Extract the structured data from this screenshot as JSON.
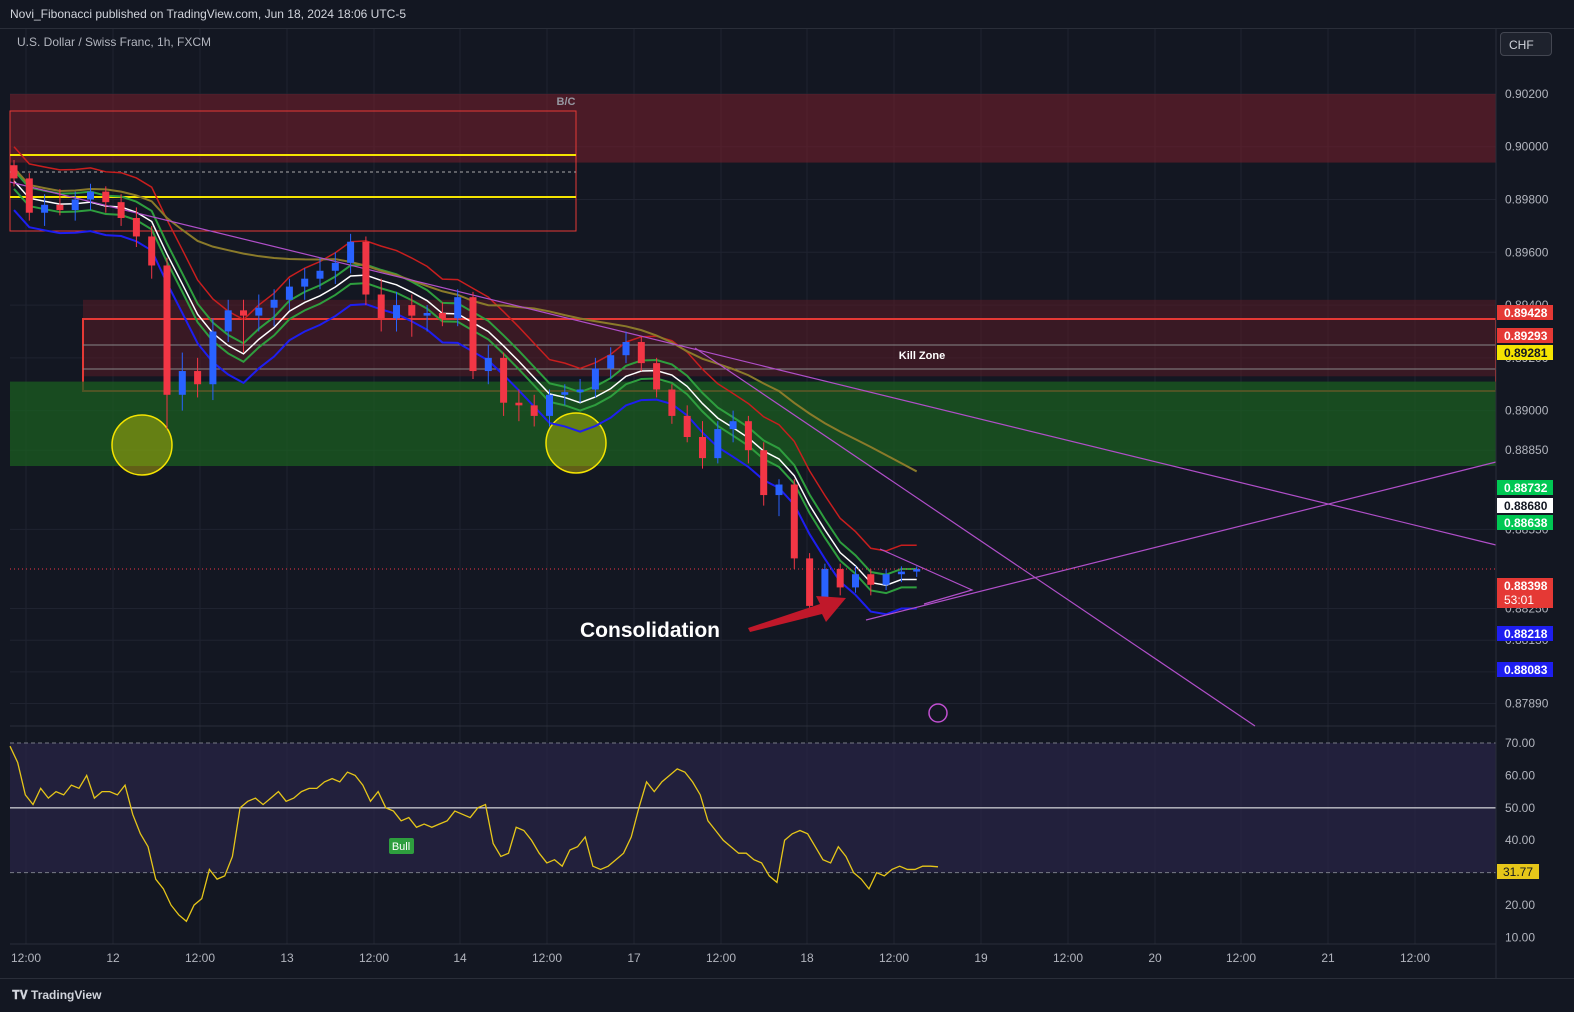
{
  "header": {
    "published": "Novi_Fibonacci published on TradingView.com, Jun 18, 2024 18:06 UTC-5"
  },
  "symbol": {
    "title": "U.S. Dollar / Swiss Franc, 1h, FXCM",
    "currency": "CHF"
  },
  "footer": {
    "brand": "TradingView"
  },
  "chart_data": [
    {
      "type": "candlestick",
      "title": "U.S. Dollar / Swiss Franc, 1h, FXCM",
      "y_axis_side": "right",
      "ylim": [
        0.8782,
        0.9045
      ],
      "y_ticks": [
        "0.90200",
        "0.90000",
        "0.89800",
        "0.89600",
        "0.89400",
        "0.89200",
        "0.89000",
        "0.88850",
        "0.88550",
        "0.88250",
        "0.88130",
        "0.88010",
        "0.87890"
      ],
      "x_tick_labels": [
        "12:00",
        "12",
        "12:00",
        "13",
        "12:00",
        "14",
        "12:00",
        "17",
        "12:00",
        "18",
        "12:00",
        "19",
        "12:00",
        "20",
        "12:00",
        "21",
        "12:00"
      ],
      "candles": [
        {
          "t": 0,
          "o": 0.8993,
          "h": 0.8995,
          "l": 0.8985,
          "c": 0.8988
        },
        {
          "t": 1,
          "o": 0.8988,
          "h": 0.899,
          "l": 0.8972,
          "c": 0.8975
        },
        {
          "t": 2,
          "o": 0.8975,
          "h": 0.8982,
          "l": 0.897,
          "c": 0.8978
        },
        {
          "t": 3,
          "o": 0.8978,
          "h": 0.8984,
          "l": 0.8974,
          "c": 0.8976
        },
        {
          "t": 4,
          "o": 0.8976,
          "h": 0.8983,
          "l": 0.8972,
          "c": 0.898
        },
        {
          "t": 5,
          "o": 0.898,
          "h": 0.8986,
          "l": 0.8976,
          "c": 0.8983
        },
        {
          "t": 6,
          "o": 0.8983,
          "h": 0.8985,
          "l": 0.8975,
          "c": 0.8979
        },
        {
          "t": 7,
          "o": 0.8979,
          "h": 0.8982,
          "l": 0.897,
          "c": 0.8973
        },
        {
          "t": 8,
          "o": 0.8973,
          "h": 0.8977,
          "l": 0.8962,
          "c": 0.8966
        },
        {
          "t": 9,
          "o": 0.8966,
          "h": 0.897,
          "l": 0.895,
          "c": 0.8955
        },
        {
          "t": 10,
          "o": 0.8955,
          "h": 0.8958,
          "l": 0.8893,
          "c": 0.8906
        },
        {
          "t": 11,
          "o": 0.8906,
          "h": 0.8922,
          "l": 0.89,
          "c": 0.8915
        },
        {
          "t": 12,
          "o": 0.8915,
          "h": 0.892,
          "l": 0.8905,
          "c": 0.891
        },
        {
          "t": 13,
          "o": 0.891,
          "h": 0.8935,
          "l": 0.8904,
          "c": 0.893
        },
        {
          "t": 14,
          "o": 0.893,
          "h": 0.8942,
          "l": 0.8926,
          "c": 0.8938
        },
        {
          "t": 15,
          "o": 0.8938,
          "h": 0.8942,
          "l": 0.8922,
          "c": 0.8936
        },
        {
          "t": 16,
          "o": 0.8936,
          "h": 0.8944,
          "l": 0.893,
          "c": 0.8939
        },
        {
          "t": 17,
          "o": 0.8939,
          "h": 0.8946,
          "l": 0.8932,
          "c": 0.8942
        },
        {
          "t": 18,
          "o": 0.8942,
          "h": 0.895,
          "l": 0.8938,
          "c": 0.8947
        },
        {
          "t": 19,
          "o": 0.8947,
          "h": 0.8954,
          "l": 0.8942,
          "c": 0.895
        },
        {
          "t": 20,
          "o": 0.895,
          "h": 0.8958,
          "l": 0.8946,
          "c": 0.8953
        },
        {
          "t": 21,
          "o": 0.8953,
          "h": 0.896,
          "l": 0.8948,
          "c": 0.8956
        },
        {
          "t": 22,
          "o": 0.8956,
          "h": 0.8967,
          "l": 0.8952,
          "c": 0.8964
        },
        {
          "t": 23,
          "o": 0.8964,
          "h": 0.8966,
          "l": 0.894,
          "c": 0.8944
        },
        {
          "t": 24,
          "o": 0.8944,
          "h": 0.895,
          "l": 0.893,
          "c": 0.8935
        },
        {
          "t": 25,
          "o": 0.8935,
          "h": 0.8945,
          "l": 0.893,
          "c": 0.894
        },
        {
          "t": 26,
          "o": 0.894,
          "h": 0.8944,
          "l": 0.8928,
          "c": 0.8936
        },
        {
          "t": 27,
          "o": 0.8936,
          "h": 0.894,
          "l": 0.893,
          "c": 0.8937
        },
        {
          "t": 28,
          "o": 0.8937,
          "h": 0.8941,
          "l": 0.8932,
          "c": 0.8935
        },
        {
          "t": 29,
          "o": 0.8935,
          "h": 0.8946,
          "l": 0.8932,
          "c": 0.8943
        },
        {
          "t": 30,
          "o": 0.8943,
          "h": 0.8945,
          "l": 0.8912,
          "c": 0.8915
        },
        {
          "t": 31,
          "o": 0.8915,
          "h": 0.8925,
          "l": 0.891,
          "c": 0.892
        },
        {
          "t": 32,
          "o": 0.892,
          "h": 0.8922,
          "l": 0.8898,
          "c": 0.8903
        },
        {
          "t": 33,
          "o": 0.8903,
          "h": 0.8908,
          "l": 0.8896,
          "c": 0.8902
        },
        {
          "t": 34,
          "o": 0.8902,
          "h": 0.8906,
          "l": 0.8894,
          "c": 0.8898
        },
        {
          "t": 35,
          "o": 0.8898,
          "h": 0.8908,
          "l": 0.8894,
          "c": 0.8906
        },
        {
          "t": 36,
          "o": 0.8906,
          "h": 0.891,
          "l": 0.8902,
          "c": 0.8907
        },
        {
          "t": 37,
          "o": 0.8907,
          "h": 0.8912,
          "l": 0.8903,
          "c": 0.8908
        },
        {
          "t": 38,
          "o": 0.8908,
          "h": 0.892,
          "l": 0.8905,
          "c": 0.8916
        },
        {
          "t": 39,
          "o": 0.8916,
          "h": 0.8924,
          "l": 0.8912,
          "c": 0.8921
        },
        {
          "t": 40,
          "o": 0.8921,
          "h": 0.893,
          "l": 0.8918,
          "c": 0.8926
        },
        {
          "t": 41,
          "o": 0.8926,
          "h": 0.8928,
          "l": 0.8915,
          "c": 0.8918
        },
        {
          "t": 42,
          "o": 0.8918,
          "h": 0.892,
          "l": 0.8905,
          "c": 0.8908
        },
        {
          "t": 43,
          "o": 0.8908,
          "h": 0.891,
          "l": 0.8895,
          "c": 0.8898
        },
        {
          "t": 44,
          "o": 0.8898,
          "h": 0.8902,
          "l": 0.8888,
          "c": 0.889
        },
        {
          "t": 45,
          "o": 0.889,
          "h": 0.8896,
          "l": 0.8878,
          "c": 0.8882
        },
        {
          "t": 46,
          "o": 0.8882,
          "h": 0.8896,
          "l": 0.888,
          "c": 0.8893
        },
        {
          "t": 47,
          "o": 0.8893,
          "h": 0.89,
          "l": 0.8888,
          "c": 0.8896
        },
        {
          "t": 48,
          "o": 0.8896,
          "h": 0.8898,
          "l": 0.888,
          "c": 0.8885
        },
        {
          "t": 49,
          "o": 0.8885,
          "h": 0.8888,
          "l": 0.8864,
          "c": 0.8868
        },
        {
          "t": 50,
          "o": 0.8868,
          "h": 0.8874,
          "l": 0.886,
          "c": 0.8872
        },
        {
          "t": 51,
          "o": 0.8872,
          "h": 0.8874,
          "l": 0.884,
          "c": 0.8844
        },
        {
          "t": 52,
          "o": 0.8844,
          "h": 0.8846,
          "l": 0.8822,
          "c": 0.8826
        },
        {
          "t": 53,
          "o": 0.8826,
          "h": 0.8842,
          "l": 0.8824,
          "c": 0.884
        },
        {
          "t": 54,
          "o": 0.884,
          "h": 0.8842,
          "l": 0.883,
          "c": 0.8833
        },
        {
          "t": 55,
          "o": 0.8833,
          "h": 0.8841,
          "l": 0.8831,
          "c": 0.8838
        },
        {
          "t": 56,
          "o": 0.8838,
          "h": 0.884,
          "l": 0.883,
          "c": 0.8834
        },
        {
          "t": 57,
          "o": 0.8834,
          "h": 0.884,
          "l": 0.8832,
          "c": 0.8838
        },
        {
          "t": 58,
          "o": 0.8838,
          "h": 0.8841,
          "l": 0.8835,
          "c": 0.8839
        },
        {
          "t": 59,
          "o": 0.8839,
          "h": 0.8841,
          "l": 0.8837,
          "c": 0.884
        }
      ],
      "price_labels": [
        {
          "value": "0.89428",
          "color": "#e53935"
        },
        {
          "value": "0.89293",
          "color": "#e53935"
        },
        {
          "value": "0.89281",
          "color": "#f5e400"
        },
        {
          "value": "0.88732",
          "color": "#00c853"
        },
        {
          "value": "0.88680",
          "color": "#ffffff"
        },
        {
          "value": "0.88638",
          "color": "#00c853"
        },
        {
          "value": "0.88398",
          "color": "#e53935"
        },
        {
          "value": "0.88218",
          "color": "#1e1ef0"
        },
        {
          "value": "0.88083",
          "color": "#1e1ef0"
        }
      ],
      "countdown": "53:01",
      "annotations": [
        "B/C",
        "Kill Zone",
        "Consolidation"
      ],
      "zones": [
        {
          "name": "supply",
          "from": 0.8994,
          "to": 0.902,
          "color": "#7a1f2b"
        },
        {
          "name": "kill-zone",
          "from": 0.8913,
          "to": 0.8942,
          "color": "#5a1c26"
        },
        {
          "name": "demand",
          "from": 0.8879,
          "to": 0.8911,
          "color": "#1b5e20"
        }
      ]
    },
    {
      "type": "line",
      "title": "RSI",
      "ylim": [
        8,
        74
      ],
      "y_ticks": [
        "70.00",
        "60.00",
        "50.00",
        "40.00",
        "30.00",
        "20.00",
        "10.00"
      ],
      "levels": [
        70,
        50,
        30
      ],
      "current_value": "31.77",
      "badge": "Bull",
      "values": [
        69,
        64,
        54,
        51,
        56,
        53,
        55,
        54,
        57,
        56,
        60,
        53,
        55,
        55,
        54,
        57,
        48,
        42,
        38,
        28,
        25,
        20,
        17,
        15,
        20,
        22,
        31,
        28,
        29,
        35,
        50,
        52,
        53,
        51,
        53,
        55,
        52,
        53,
        55,
        56,
        56,
        58,
        59,
        58,
        61,
        60,
        57,
        52,
        55,
        50,
        49,
        46,
        47,
        44,
        45,
        44,
        45,
        46,
        49,
        48,
        47,
        50,
        51,
        39,
        35,
        36,
        44,
        43,
        40,
        36,
        33,
        34,
        32,
        37,
        38,
        41,
        32,
        31,
        32,
        34,
        36,
        41,
        50,
        58,
        55,
        58,
        60,
        62,
        61,
        58,
        54,
        46,
        43,
        40,
        38,
        36,
        36,
        34,
        33,
        29,
        27,
        40,
        42,
        43,
        42,
        38,
        34,
        33,
        38,
        35,
        30,
        28,
        25,
        30,
        29,
        31,
        32,
        31,
        31,
        32,
        32,
        31.8
      ]
    }
  ]
}
